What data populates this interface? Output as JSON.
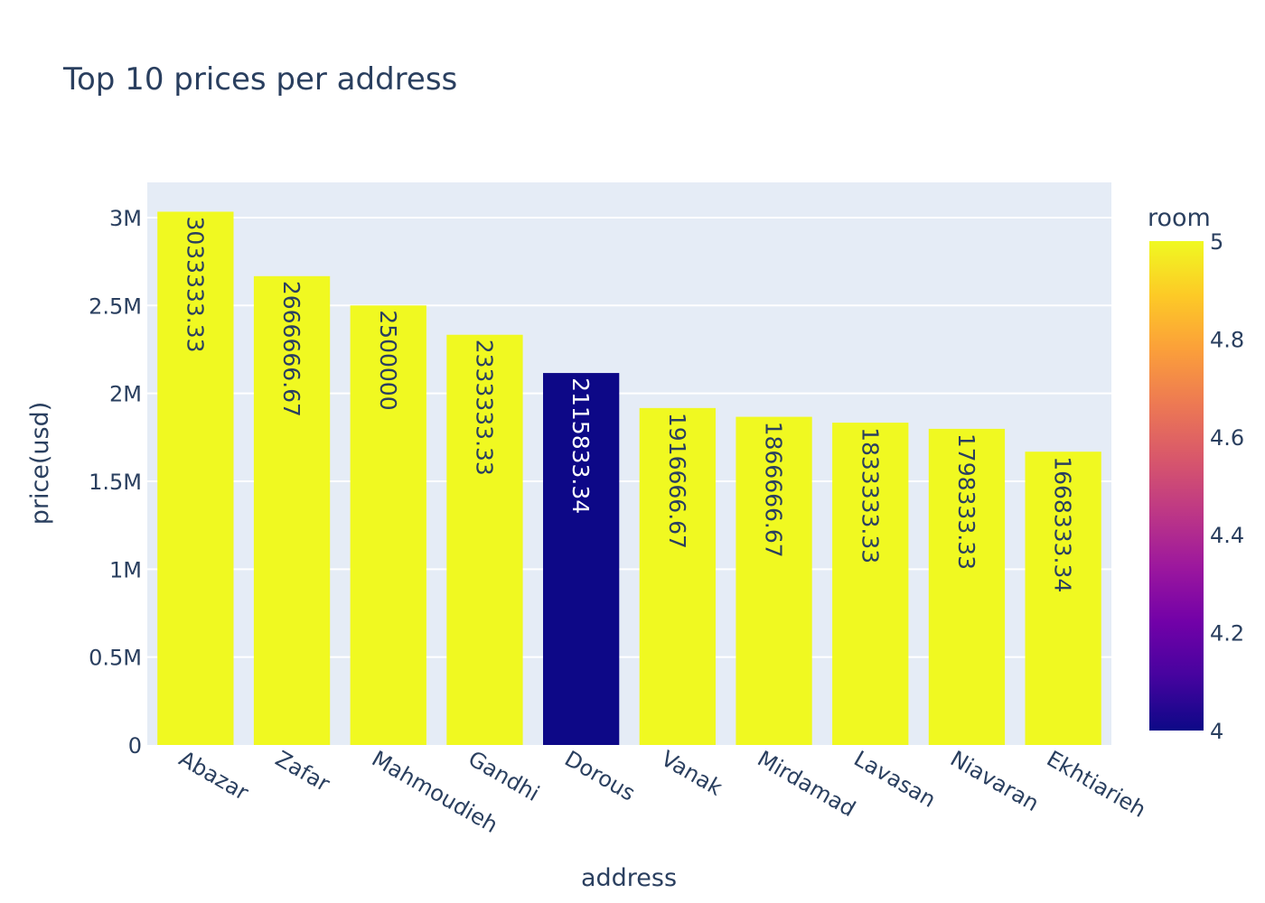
{
  "chart_data": {
    "type": "bar",
    "title": "Top 10 prices per address",
    "xlabel": "address",
    "ylabel": "price(usd)",
    "categories": [
      "Abazar",
      "Zafar",
      "Mahmoudieh",
      "Gandhi",
      "Dorous",
      "Vanak",
      "Mirdamad",
      "Lavasan",
      "Niavaran",
      "Ekhtiarieh"
    ],
    "values": [
      3033333.33,
      2666666.67,
      2500000,
      2333333.33,
      2115833.34,
      1916666.67,
      1866666.67,
      1833333.33,
      1798333.33,
      1668333.34
    ],
    "value_labels": [
      "3033333.33",
      "2666666.67",
      "2500000",
      "2333333.33",
      "2115833.34",
      "1916666.67",
      "1866666.67",
      "1833333.33",
      "1798333.33",
      "1668333.34"
    ],
    "room": [
      5,
      5,
      5,
      5,
      4,
      5,
      5,
      5,
      5,
      5
    ],
    "ylim": [
      0,
      3200000
    ],
    "y_ticks": [
      0,
      500000,
      1000000,
      1500000,
      2000000,
      2500000,
      3000000
    ],
    "y_tick_labels": [
      "0",
      "0.5M",
      "1M",
      "1.5M",
      "2M",
      "2.5M",
      "3M"
    ],
    "grid": true,
    "colorbar": {
      "title": "room",
      "range": [
        4,
        5
      ],
      "ticks": [
        4,
        4.2,
        4.4,
        4.6,
        4.8,
        5
      ],
      "tick_labels": [
        "4",
        "4.2",
        "4.4",
        "4.6",
        "4.8",
        "5"
      ],
      "colorscale": [
        "#0d0887",
        "#46039f",
        "#7201a8",
        "#9c179e",
        "#bd3786",
        "#d8576b",
        "#ed7953",
        "#fb9f3a",
        "#fdca26",
        "#f0f921"
      ]
    },
    "colors": {
      "plot_bg": "#e5ecf6",
      "grid": "#ffffff",
      "text": "#2a3f5f",
      "bar_label_dark": "#2a3f5f",
      "bar_label_light": "#ffffff"
    }
  }
}
